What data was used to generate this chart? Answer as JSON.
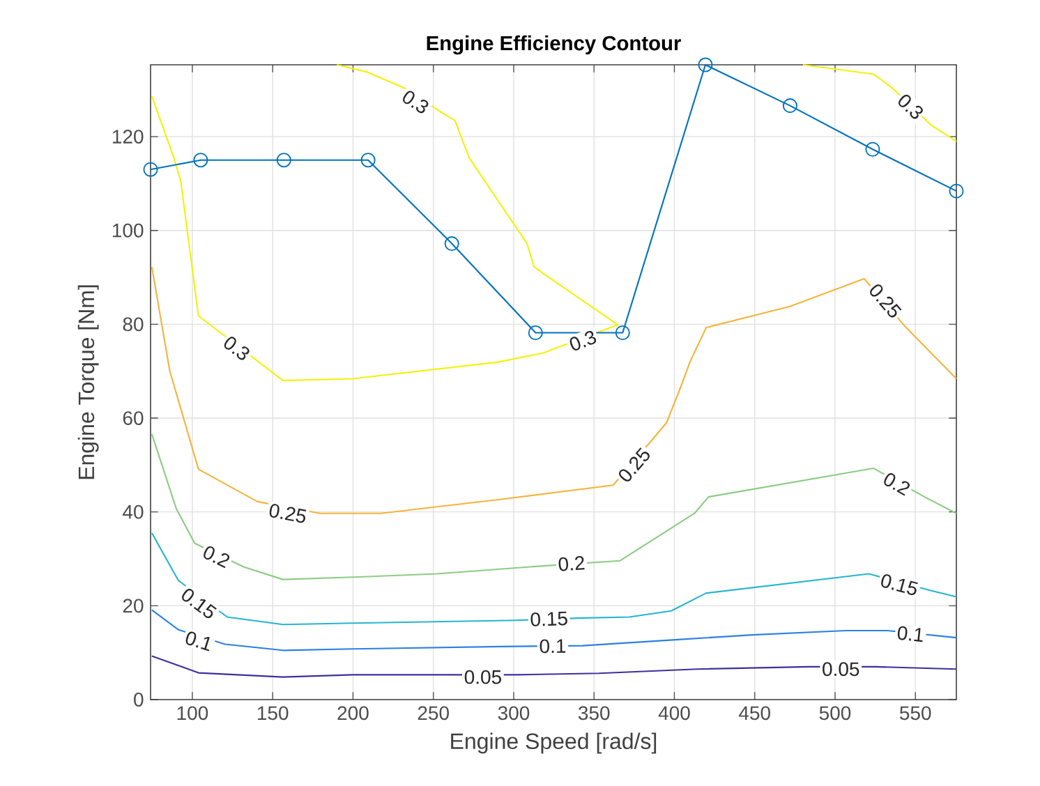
{
  "chart_data": {
    "type": "line",
    "title": "Engine Efficiency Contour",
    "xlabel": "Engine Speed [rad/s]",
    "ylabel": "Engine Torque [Nm]",
    "xlim": [
      74,
      575.5
    ],
    "ylim": [
      0,
      135.3
    ],
    "xticks": [
      100,
      150,
      200,
      250,
      300,
      350,
      400,
      450,
      500,
      550
    ],
    "yticks": [
      0,
      20,
      40,
      60,
      80,
      100,
      120
    ],
    "grid": true,
    "series": [
      {
        "color": "#3e2f9e",
        "marker": "none",
        "x": [
          74.8,
          103.8,
          156.4,
          200,
          263.5,
          302.6,
          353.2,
          414,
          483.4,
          525.3,
          575.5
        ],
        "values": [
          9.3,
          5.7,
          4.8,
          5.3,
          5.3,
          5.3,
          5.6,
          6.5,
          7,
          7,
          6.5
        ]
      },
      {
        "color": "#2b80e2",
        "marker": "none",
        "x": [
          74.8,
          91.3,
          120.3,
          156.4,
          200,
          292.4,
          343,
          402.4,
          448.7,
          506.6,
          532.6,
          575.5
        ],
        "values": [
          19.1,
          14.9,
          11.8,
          10.5,
          10.8,
          11.3,
          11.5,
          12.8,
          13.8,
          14.7,
          14.7,
          13.2
        ]
      },
      {
        "color": "#26b5cf",
        "marker": "none",
        "x": [
          74.8,
          91.3,
          121.7,
          156.4,
          200,
          301.1,
          343,
          372,
          398,
          419.8,
          521,
          560,
          575.5
        ],
        "values": [
          35.5,
          25.4,
          17.6,
          16,
          16.3,
          16.9,
          17.4,
          17.6,
          18.9,
          22.7,
          26.8,
          23.2,
          21.9
        ]
      },
      {
        "color": "#8ccc84",
        "marker": "none",
        "x": [
          74.8,
          90,
          101.5,
          131.9,
          156.4,
          200,
          252,
          318.5,
          366.2,
          412.5,
          421.2,
          524,
          555.7,
          575.5
        ],
        "values": [
          56.6,
          40.7,
          33.3,
          28.3,
          25.6,
          26.1,
          26.8,
          28.5,
          29.6,
          39.7,
          43.2,
          49.3,
          43.2,
          39.7
        ]
      },
      {
        "color": "#f5b43c",
        "marker": "none",
        "x": [
          74.8,
          86,
          103.8,
          140.5,
          179.6,
          217.2,
          292.4,
          361.9,
          388,
          395.1,
          403.8,
          409.6,
          419.8,
          471.9,
          518.1,
          544.2,
          575.5
        ],
        "values": [
          92.2,
          70,
          49.1,
          42.2,
          39.7,
          39.7,
          42.7,
          45.7,
          56.1,
          59,
          66.5,
          71.9,
          79.3,
          83.8,
          89.7,
          79.3,
          68.4
        ]
      },
      {
        "color": "#f2f20c",
        "marker": "none",
        "x": [
          74.8,
          88.5,
          92.8,
          103.8,
          156.4,
          200,
          289.6,
          318.4,
          364.8,
          327,
          312.7,
          308.3,
          272.2,
          263.5,
          256.3,
          231.7,
          208.5,
          190
        ],
        "values": [
          128.6,
          115.5,
          110.5,
          81.8,
          68,
          68.4,
          71.9,
          73.9,
          79.9,
          88.8,
          92.2,
          97.2,
          115.5,
          123.4,
          124.9,
          130.4,
          133.8,
          135.3
        ]
      },
      {
        "color": "#f2f20c",
        "marker": "none",
        "x": [
          480,
          524,
          535.5,
          560,
          575.5
        ],
        "values": [
          135.3,
          133.3,
          130.4,
          122.4,
          119
        ]
      },
      {
        "color": "#0072bd",
        "marker": "circle",
        "x": [
          74,
          105.2,
          157,
          209.4,
          261.5,
          313.6,
          367.8,
          419.3,
          472,
          523.4,
          575.5
        ],
        "values": [
          113,
          115,
          115,
          115,
          97.2,
          78.2,
          78.2,
          135.3,
          126.6,
          117.3,
          108.4
        ]
      }
    ],
    "annotations": [
      {
        "text": "0.05",
        "x": 280.9,
        "y": 4.8
      },
      {
        "text": "0.05",
        "x": 503.6,
        "y": 6.5
      },
      {
        "text": "0.1",
        "x": 104,
        "y": 12.5
      },
      {
        "text": "0.1",
        "x": 324.3,
        "y": 11.4
      },
      {
        "text": "0.1",
        "x": 547,
        "y": 14
      },
      {
        "text": "0.15",
        "x": 104,
        "y": 20.5
      },
      {
        "text": "0.15",
        "x": 322,
        "y": 17.2
      },
      {
        "text": "0.15",
        "x": 540,
        "y": 24.5
      },
      {
        "text": "0.2",
        "x": 115,
        "y": 30.5
      },
      {
        "text": "0.2",
        "x": 336,
        "y": 29
      },
      {
        "text": "0.2",
        "x": 538.4,
        "y": 46
      },
      {
        "text": "0.25",
        "x": 159.4,
        "y": 39.7
      },
      {
        "text": "0.25",
        "x": 375,
        "y": 50
      },
      {
        "text": "0.25",
        "x": 531.2,
        "y": 85
      },
      {
        "text": "0.3",
        "x": 127.6,
        "y": 74.9
      },
      {
        "text": "0.3",
        "x": 238.9,
        "y": 127.4
      },
      {
        "text": "0.3",
        "x": 343,
        "y": 76.5
      },
      {
        "text": "0.3",
        "x": 547,
        "y": 126.4
      }
    ]
  }
}
